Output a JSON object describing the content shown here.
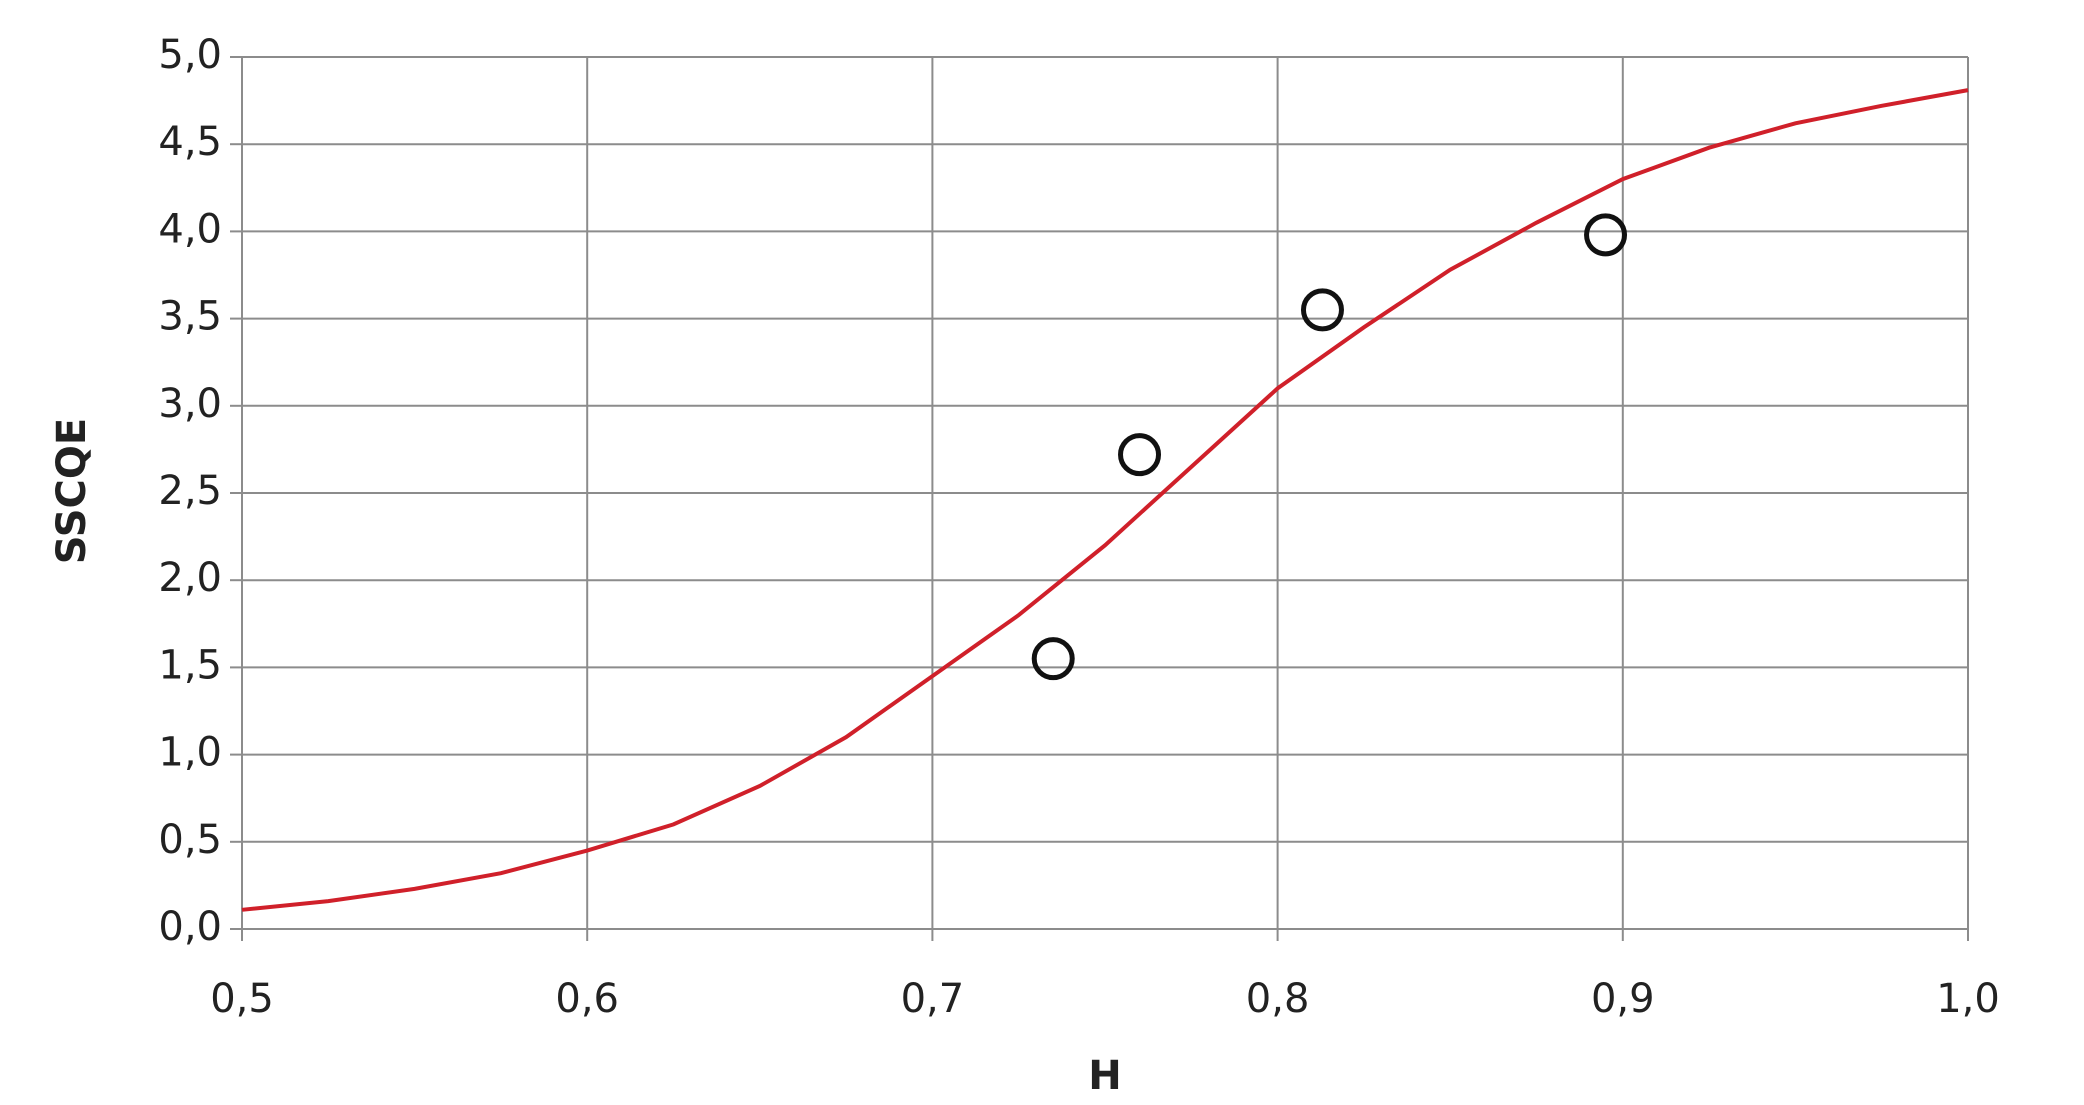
{
  "chart_data": {
    "type": "scatter",
    "x_label": "H",
    "y_label": "SSCQE",
    "xlim": [
      0.5,
      1.0
    ],
    "xticks": [
      {
        "value": 0.5,
        "label": "0,5"
      },
      {
        "value": 0.6,
        "label": "0,6"
      },
      {
        "value": 0.7,
        "label": "0,7"
      },
      {
        "value": 0.8,
        "label": "0,8"
      },
      {
        "value": 0.9,
        "label": "0,9"
      },
      {
        "value": 1.0,
        "label": "1,0"
      }
    ],
    "ylim": [
      0,
      5
    ],
    "yticks": [
      {
        "value": 0,
        "label": "0,0"
      },
      {
        "value": 0.5,
        "label": "0,5"
      },
      {
        "value": 1,
        "label": "1,0"
      },
      {
        "value": 1.5,
        "label": "1,5"
      },
      {
        "value": 2,
        "label": "2,0"
      },
      {
        "value": 2.5,
        "label": "2,5"
      },
      {
        "value": 3,
        "label": "3,0"
      },
      {
        "value": 3.5,
        "label": "3,5"
      },
      {
        "value": 4,
        "label": "4,0"
      },
      {
        "value": 4.5,
        "label": "4,5"
      },
      {
        "value": 5,
        "label": "5,0"
      }
    ],
    "grid": true,
    "series": [
      {
        "type": "line",
        "color": "#d0202a",
        "x": [
          0.5,
          0.525,
          0.55,
          0.575,
          0.6,
          0.625,
          0.65,
          0.675,
          0.7,
          0.725,
          0.75,
          0.775,
          0.8,
          0.825,
          0.85,
          0.875,
          0.9,
          0.925,
          0.95,
          0.975,
          1.0
        ],
        "values": [
          0.11,
          0.16,
          0.23,
          0.32,
          0.45,
          0.6,
          0.82,
          1.1,
          1.45,
          1.8,
          2.2,
          2.65,
          3.1,
          3.45,
          3.78,
          4.05,
          4.3,
          4.48,
          4.62,
          4.72,
          4.81
        ]
      },
      {
        "type": "scatter",
        "color": "#111111",
        "x": [
          0.735,
          0.76,
          0.813,
          0.895
        ],
        "values": [
          1.55,
          2.72,
          3.55,
          3.98
        ]
      }
    ]
  }
}
